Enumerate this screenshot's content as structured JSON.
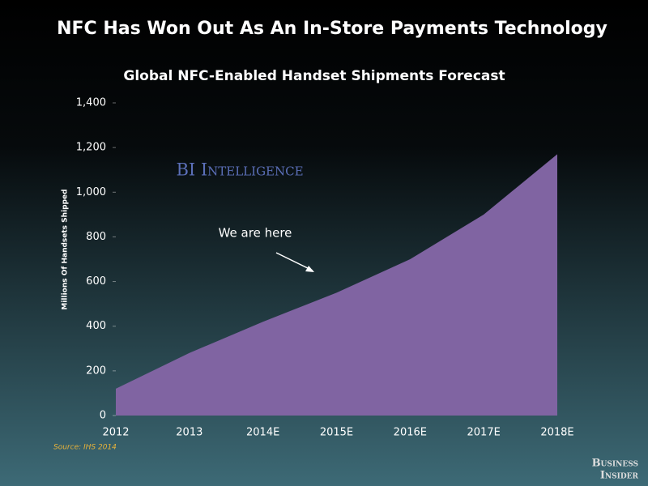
{
  "chart_data": {
    "type": "area",
    "title": "NFC Has Won Out As An In-Store Payments Technology",
    "subtitle": "Global NFC-Enabled Handset Shipments Forecast",
    "y_label": "Millions Of Handsets Shipped",
    "categories": [
      "2012",
      "2013",
      "2014E",
      "2015E",
      "2016E",
      "2017E",
      "2018E"
    ],
    "values": [
      120,
      280,
      420,
      550,
      700,
      900,
      1170
    ],
    "color": "#8064a2",
    "ylim": [
      0,
      1400
    ],
    "yticks": [
      0,
      200,
      400,
      600,
      800,
      {
        "value": 1000,
        "label": "1,000"
      },
      {
        "value": 1200,
        "label": "1,200"
      },
      {
        "value": 1400,
        "label": "1,400"
      }
    ],
    "grid": false,
    "annotation": "We are here",
    "watermark": "BI Intelligence",
    "source": "Source: IHS 2014",
    "logo": [
      "Business",
      "Insider"
    ]
  }
}
